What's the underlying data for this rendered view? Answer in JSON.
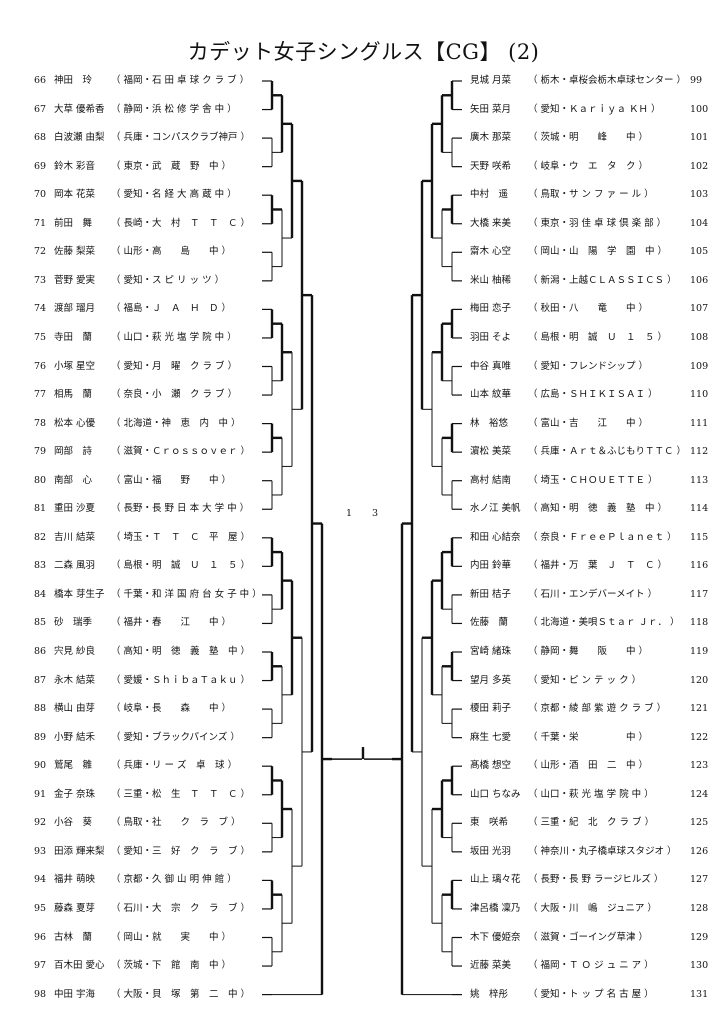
{
  "title": "カデット女子シングルス【CG】 (2)",
  "left_entries": [
    {
      "seed": "66",
      "name": "神田　玲",
      "team": "（ 福岡・石 田 卓 球 ク ラ ブ ）"
    },
    {
      "seed": "67",
      "name": "大草 優希香",
      "team": "（ 静岡・浜 松 修 学 舎 中 ）"
    },
    {
      "seed": "68",
      "name": "白波瀬 由梨",
      "team": "（ 兵庫・コンパスクラブ神戸 ）"
    },
    {
      "seed": "69",
      "name": "鈴木 彩音",
      "team": "（ 東京・武　蔵　野　中 ）"
    },
    {
      "seed": "70",
      "name": "岡本 花菜",
      "team": "（ 愛知・名 経 大 高 蔵 中 ）"
    },
    {
      "seed": "71",
      "name": "前田　舞",
      "team": "（ 長崎・大　村　Ｔ　Ｔ　Ｃ ）"
    },
    {
      "seed": "72",
      "name": "佐藤 梨菜",
      "team": "（ 山形・高　　島　　中 ）"
    },
    {
      "seed": "73",
      "name": "菅野 愛実",
      "team": "（ 愛知・ス ピ リ ッ ツ ）"
    },
    {
      "seed": "74",
      "name": "渡部 瑠月",
      "team": "（ 福島・Ｊ　Ａ　Ｈ　Ｄ ）"
    },
    {
      "seed": "75",
      "name": "寺田　蘭",
      "team": "（ 山口・萩 光 塩 学 院 中 ）"
    },
    {
      "seed": "76",
      "name": "小塚 星空",
      "team": "（ 愛知・月　曜　ク ラ ブ ）"
    },
    {
      "seed": "77",
      "name": "相馬　蘭",
      "team": "（ 奈良・小　瀬　ク ラ ブ ）"
    },
    {
      "seed": "78",
      "name": "松本 心優",
      "team": "（ 北海道・神　恵　内　中 ）"
    },
    {
      "seed": "79",
      "name": "岡部　詩",
      "team": "（ 滋賀・Ｃｒｏｓｓｏｖｅｒ ）"
    },
    {
      "seed": "80",
      "name": "南部　心",
      "team": "（ 富山・福　　野　　中 ）"
    },
    {
      "seed": "81",
      "name": "重田 沙夏",
      "team": "（ 長野・長 野 日 本 大 学 中 ）"
    },
    {
      "seed": "82",
      "name": "吉川 結菜",
      "team": "（ 埼玉・Ｔ　Ｔ　Ｃ　平　屋 ）"
    },
    {
      "seed": "83",
      "name": "二森 風羽",
      "team": "（ 島根・明　誠　Ｕ　１　５ ）"
    },
    {
      "seed": "84",
      "name": "橋本 芽生子",
      "team": "（ 千葉・和 洋 国 府 台 女 子 中 ）"
    },
    {
      "seed": "85",
      "name": "砂　瑞季",
      "team": "（ 福井・春　　江　　中 ）"
    },
    {
      "seed": "86",
      "name": "宍見 紗良",
      "team": "（ 高知・明　徳　義　塾　中 ）"
    },
    {
      "seed": "87",
      "name": "永木 結菜",
      "team": "（ 愛媛・ＳｈｉｂａＴａｋｕ ）"
    },
    {
      "seed": "88",
      "name": "横山 由芽",
      "team": "（ 岐阜・長　　森　　中 ）"
    },
    {
      "seed": "89",
      "name": "小野 結禾",
      "team": "（ 愛知・ブラックパインズ ）"
    },
    {
      "seed": "90",
      "name": "鷲尾　雛",
      "team": "（ 兵庫・リ ー ズ　卓　球 ）"
    },
    {
      "seed": "91",
      "name": "金子 奈珠",
      "team": "（ 三重・松　生　Ｔ　Ｔ　Ｃ ）"
    },
    {
      "seed": "92",
      "name": "小谷　葵",
      "team": "（ 鳥取・社　　ク　ラ　ブ ）"
    },
    {
      "seed": "93",
      "name": "田添 輝来梨",
      "team": "（ 愛知・三　好　ク　ラ　ブ ）"
    },
    {
      "seed": "94",
      "name": "福井 萌映",
      "team": "（ 京都・久 御 山 明 伸 館 ）"
    },
    {
      "seed": "95",
      "name": "藤森 夏芽",
      "team": "（ 石川・大　宗　ク　ラ　ブ ）"
    },
    {
      "seed": "96",
      "name": "古林　蘭",
      "team": "（ 岡山・就　　実　　中 ）"
    },
    {
      "seed": "97",
      "name": "百木田 愛心",
      "team": "（ 茨城・下　館　南　中 ）"
    },
    {
      "seed": "98",
      "name": "中田 宇海",
      "team": "（ 大阪・貝　塚　第　二　中 ）"
    }
  ],
  "right_entries": [
    {
      "seed": "99",
      "name": "見城 月菜",
      "team": "（ 栃木・卓桜会栃木卓球センター ）"
    },
    {
      "seed": "100",
      "name": "矢田 菜月",
      "team": "（ 愛知・Ｋａｒｉｙａ ＫＨ ）"
    },
    {
      "seed": "101",
      "name": "廣木 那菜",
      "team": "（ 茨城・明　　峰　　中 ）"
    },
    {
      "seed": "102",
      "name": "天野 咲希",
      "team": "（ 岐阜・ウ　エ　タ　ク ）"
    },
    {
      "seed": "103",
      "name": "中村　遥",
      "team": "（ 鳥取・サ ン フ ァ ー ル ）"
    },
    {
      "seed": "104",
      "name": "大橋 来美",
      "team": "（ 東京・羽 佳 卓 球 倶 楽 部 ）"
    },
    {
      "seed": "105",
      "name": "齋木 心空",
      "team": "（ 岡山・山　陽　学　園　中 ）"
    },
    {
      "seed": "106",
      "name": "米山 柚稀",
      "team": "（ 新潟・上越ＣＬＡＳＳＩＣＳ ）"
    },
    {
      "seed": "107",
      "name": "梅田 恋子",
      "team": "（ 秋田・八　　竜　　中 ）"
    },
    {
      "seed": "108",
      "name": "羽田 そよ",
      "team": "（ 島根・明　誠　Ｕ　１　５ ）"
    },
    {
      "seed": "109",
      "name": "中谷 真唯",
      "team": "（ 愛知・フレンドシップ ）"
    },
    {
      "seed": "110",
      "name": "山本 紋華",
      "team": "（ 広島・ＳＨＩＫＩＳＡＩ ）"
    },
    {
      "seed": "111",
      "name": "林　裕悠",
      "team": "（ 富山・吉　　江　　中 ）"
    },
    {
      "seed": "112",
      "name": "濵松 美菜",
      "team": "（ 兵庫・Ａｒｔ＆ふじもりＴＴＣ ）"
    },
    {
      "seed": "113",
      "name": "高村 結南",
      "team": "（ 埼玉・ＣＨＯＵＥＴＴＥ ）"
    },
    {
      "seed": "114",
      "name": "水ノ江 美帆",
      "team": "（ 高知・明　徳　義　塾　中 ）"
    },
    {
      "seed": "115",
      "name": "和田 心結奈",
      "team": "（ 奈良・ＦｒｅｅＰｌａｎｅｔ ）"
    },
    {
      "seed": "116",
      "name": "内田 鈴華",
      "team": "（ 福井・万　葉　Ｊ　Ｔ　Ｃ ）"
    },
    {
      "seed": "117",
      "name": "新田 桔子",
      "team": "（ 石川・エンデバーメイト ）"
    },
    {
      "seed": "118",
      "name": "佐藤　蘭",
      "team": "（ 北海道・美唄Ｓｔａｒ Ｊｒ． ）"
    },
    {
      "seed": "119",
      "name": "宮崎 緒珠",
      "team": "（ 静岡・舞　　阪　　中 ）"
    },
    {
      "seed": "120",
      "name": "望月 多英",
      "team": "（ 愛知・ピ ン テ ッ ク ）"
    },
    {
      "seed": "121",
      "name": "榎田 莉子",
      "team": "（ 京都・綾 部 紫 遊 ク ラ ブ ）"
    },
    {
      "seed": "122",
      "name": "麻生 七愛",
      "team": "（ 千葉・栄　　　　　中 ）"
    },
    {
      "seed": "123",
      "name": "髙橋 想空",
      "team": "（ 山形・酒　田　二　中 ）"
    },
    {
      "seed": "124",
      "name": "山口 ちなみ",
      "team": "（ 山口・萩 光 塩 学 院 中 ）"
    },
    {
      "seed": "125",
      "name": "東　咲希",
      "team": "（ 三重・紀　北　ク ラ ブ ）"
    },
    {
      "seed": "126",
      "name": "坂田 光羽",
      "team": "（ 神奈川・丸子橋卓球スタジオ ）"
    },
    {
      "seed": "127",
      "name": "山上 璃々花",
      "team": "（ 長野・長 野 ラージヒルズ ）"
    },
    {
      "seed": "128",
      "name": "津呂橋 凜乃",
      "team": "（ 大阪・川　嶋　ジュニア ）"
    },
    {
      "seed": "129",
      "name": "木下 優姫奈",
      "team": "（ 滋賀・ゴーイング草津 ）"
    },
    {
      "seed": "130",
      "name": "近藤 菜美",
      "team": "（ 福岡・Ｔ Ｏ ジ ュ ニ ア ）"
    },
    {
      "seed": "131",
      "name": "姚　梓彤",
      "team": "（ 愛知・ト ッ プ 名 古 屋 ）"
    }
  ],
  "final_scores": [
    "1",
    "3"
  ]
}
